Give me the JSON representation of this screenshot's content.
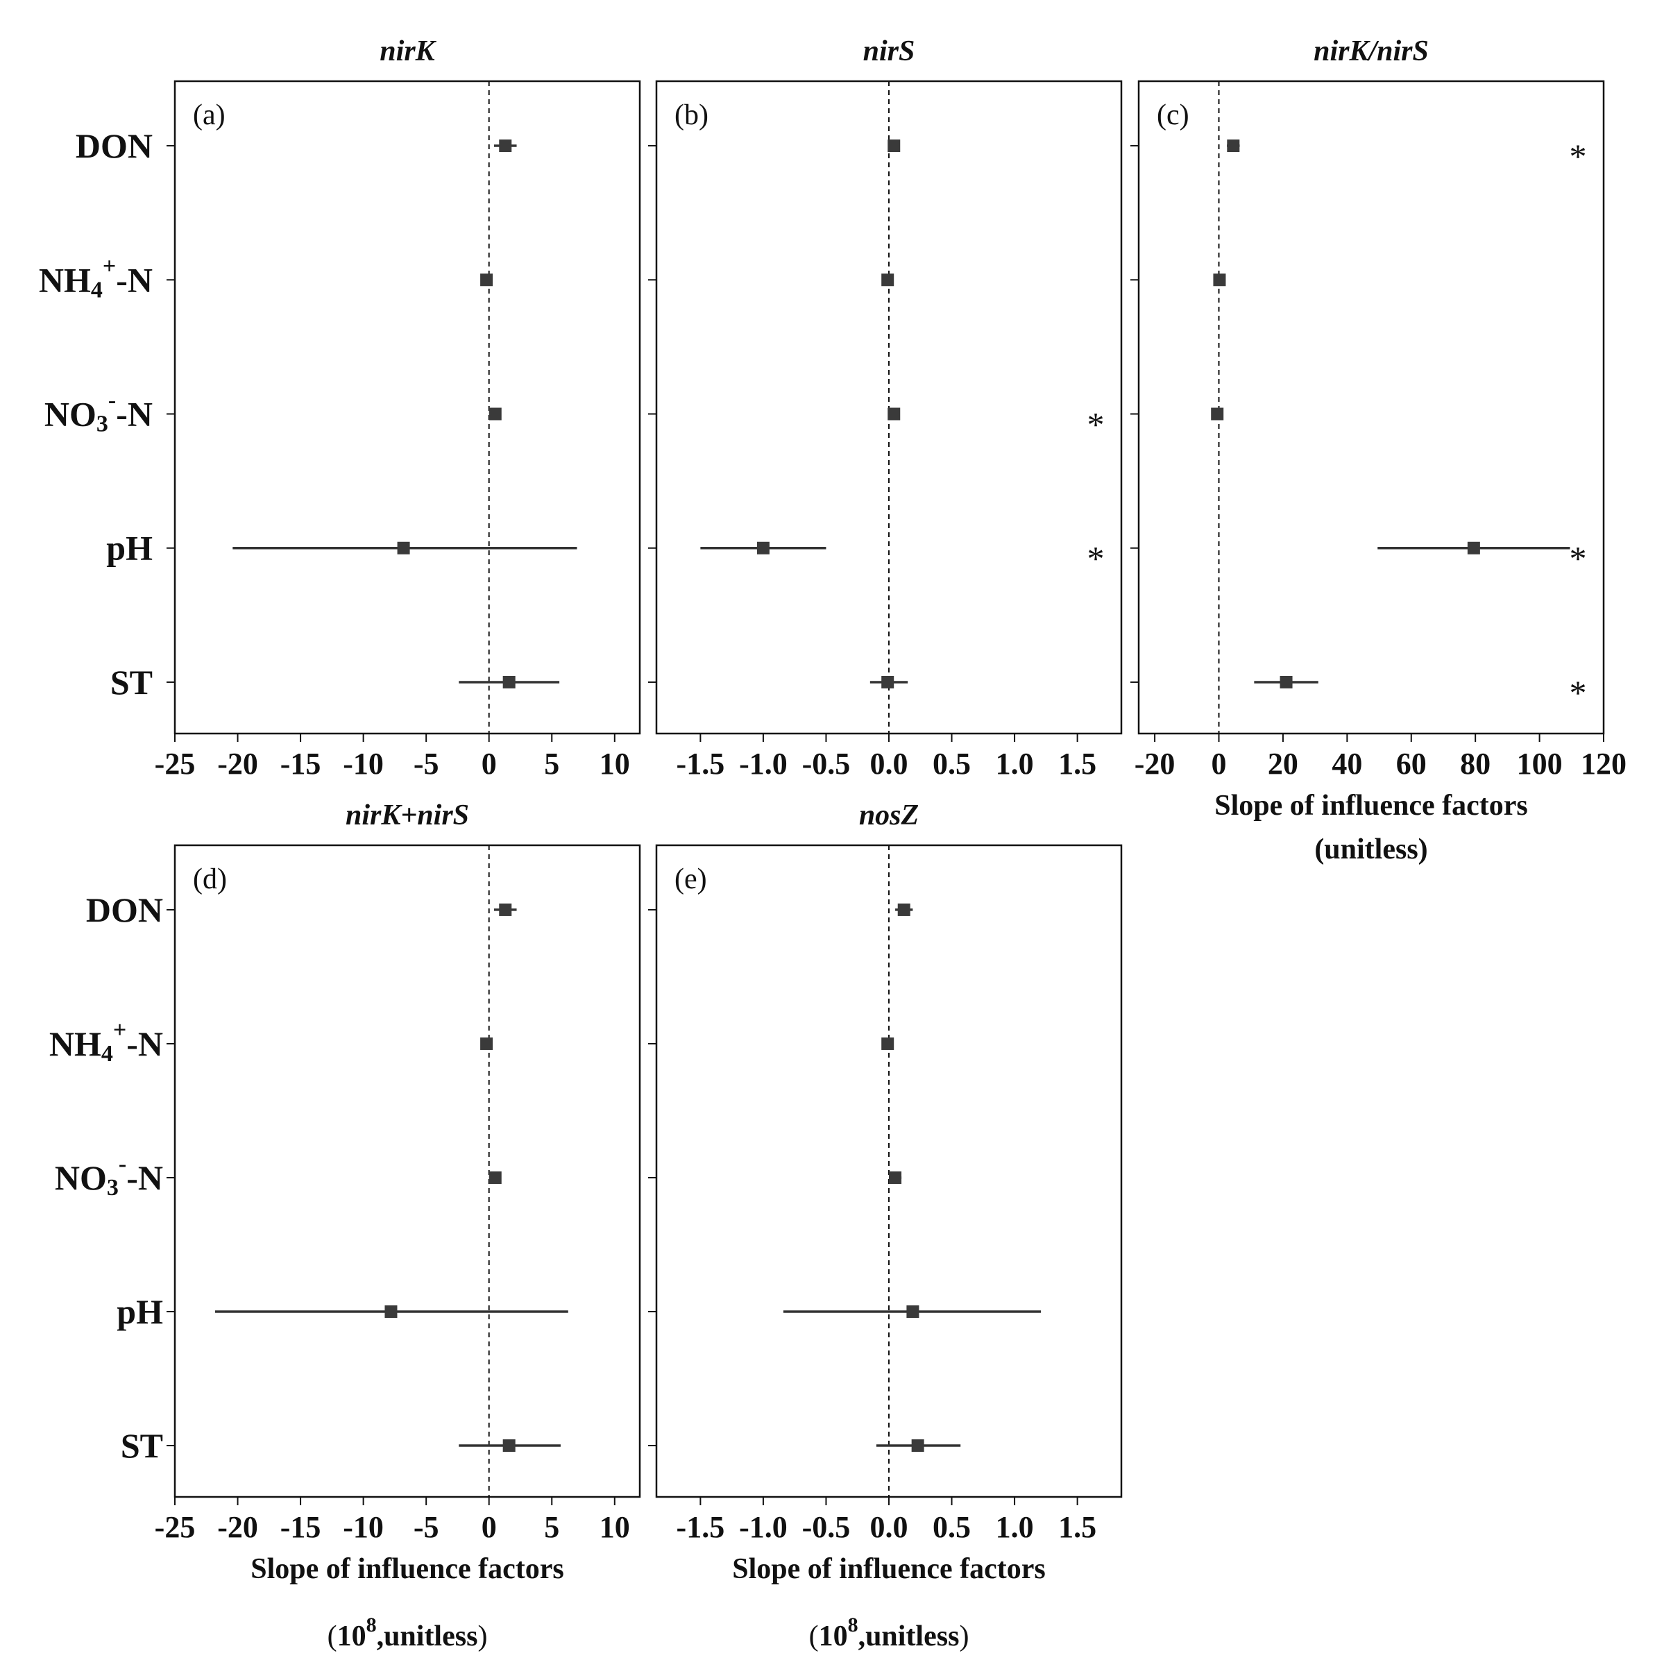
{
  "chart_data": [
    {
      "type": "forest",
      "panel_label": "(a)",
      "title": "nirK",
      "categories": [
        "DON",
        "NH4+-N",
        "NO3−-N",
        "pH",
        "ST"
      ],
      "estimates": [
        1.3,
        -0.2,
        0.5,
        -6.8,
        1.6
      ],
      "ci_low": [
        0.4,
        -0.5,
        0.1,
        -20.4,
        -2.4
      ],
      "ci_high": [
        2.2,
        0.1,
        0.9,
        7.0,
        5.6
      ],
      "significant": [
        false,
        false,
        false,
        false,
        false
      ],
      "xlim": [
        -25,
        12
      ],
      "xticks": [
        "-25",
        "-20",
        "-15",
        "-10",
        "-5",
        "0",
        "5",
        "10"
      ],
      "xlabel": "",
      "xunit": "",
      "reference_line": 0
    },
    {
      "type": "forest",
      "panel_label": "(b)",
      "title": "nirS",
      "categories": [
        "DON",
        "NH4+-N",
        "NO3−-N",
        "pH",
        "ST"
      ],
      "estimates": [
        0.04,
        -0.01,
        0.04,
        -1.0,
        -0.01
      ],
      "ci_low": [
        0.0,
        -0.04,
        0.0,
        -1.5,
        -0.15
      ],
      "ci_high": [
        0.08,
        0.02,
        0.08,
        -0.5,
        0.15
      ],
      "significant": [
        false,
        false,
        true,
        true,
        false
      ],
      "xlim": [
        -1.85,
        1.85
      ],
      "xticks": [
        "-1.5",
        "-1.0",
        "-0.5",
        "0.0",
        "0.5",
        "1.0",
        "1.5"
      ],
      "xlabel": "",
      "xunit": "",
      "reference_line": 0
    },
    {
      "type": "forest",
      "panel_label": "(c)",
      "title": "nirK/nirS",
      "categories": [
        "DON",
        "NH4+-N",
        "NO3−-N",
        "pH",
        "ST"
      ],
      "estimates": [
        4.5,
        0.2,
        -0.5,
        79.5,
        21.0
      ],
      "ci_low": [
        2.5,
        -1.2,
        -2.0,
        49.5,
        11.0
      ],
      "ci_high": [
        6.5,
        1.6,
        1.0,
        109.5,
        31.0
      ],
      "significant": [
        true,
        false,
        false,
        true,
        true
      ],
      "xlim": [
        -25,
        120
      ],
      "xticks": [
        "-20",
        "0",
        "20",
        "40",
        "60",
        "80",
        "100",
        "120"
      ],
      "xlabel": "Slope of influence factors",
      "xunit": "(unitless)",
      "reference_line": 0
    },
    {
      "type": "forest",
      "panel_label": "(d)",
      "title": "nirK+nirS",
      "categories": [
        "DON",
        "NH4+-N",
        "NO3−-N",
        "pH",
        "ST"
      ],
      "estimates": [
        1.3,
        -0.2,
        0.5,
        -7.8,
        1.6
      ],
      "ci_low": [
        0.4,
        -0.5,
        0.1,
        -21.8,
        -2.4
      ],
      "ci_high": [
        2.2,
        0.1,
        0.9,
        6.3,
        5.7
      ],
      "significant": [
        false,
        false,
        false,
        false,
        false
      ],
      "xlim": [
        -25,
        12
      ],
      "xticks": [
        "-25",
        "-20",
        "-15",
        "-10",
        "-5",
        "0",
        "5",
        "10"
      ],
      "xlabel": "Slope of influence factors",
      "xunit": "(10^8,unitless)",
      "reference_line": 0
    },
    {
      "type": "forest",
      "panel_label": "(e)",
      "title": "nosZ",
      "categories": [
        "DON",
        "NH4+-N",
        "NO3−-N",
        "pH",
        "ST"
      ],
      "estimates": [
        0.12,
        -0.01,
        0.05,
        0.19,
        0.23
      ],
      "ci_low": [
        0.05,
        -0.03,
        0.0,
        -0.84,
        -0.1
      ],
      "ci_high": [
        0.19,
        0.01,
        0.1,
        1.21,
        0.57
      ],
      "significant": [
        false,
        false,
        false,
        false,
        false
      ],
      "xlim": [
        -1.85,
        1.85
      ],
      "xticks": [
        "-1.5",
        "-1.0",
        "-0.5",
        "0.0",
        "0.5",
        "1.0",
        "1.5"
      ],
      "xlabel": "Slope of influence factors",
      "xunit": "(10^8,unitless)",
      "reference_line": 0
    }
  ],
  "ui": {
    "significance_marker": "*",
    "marker_color": "#3a3a3a",
    "line_color": "#333333"
  }
}
